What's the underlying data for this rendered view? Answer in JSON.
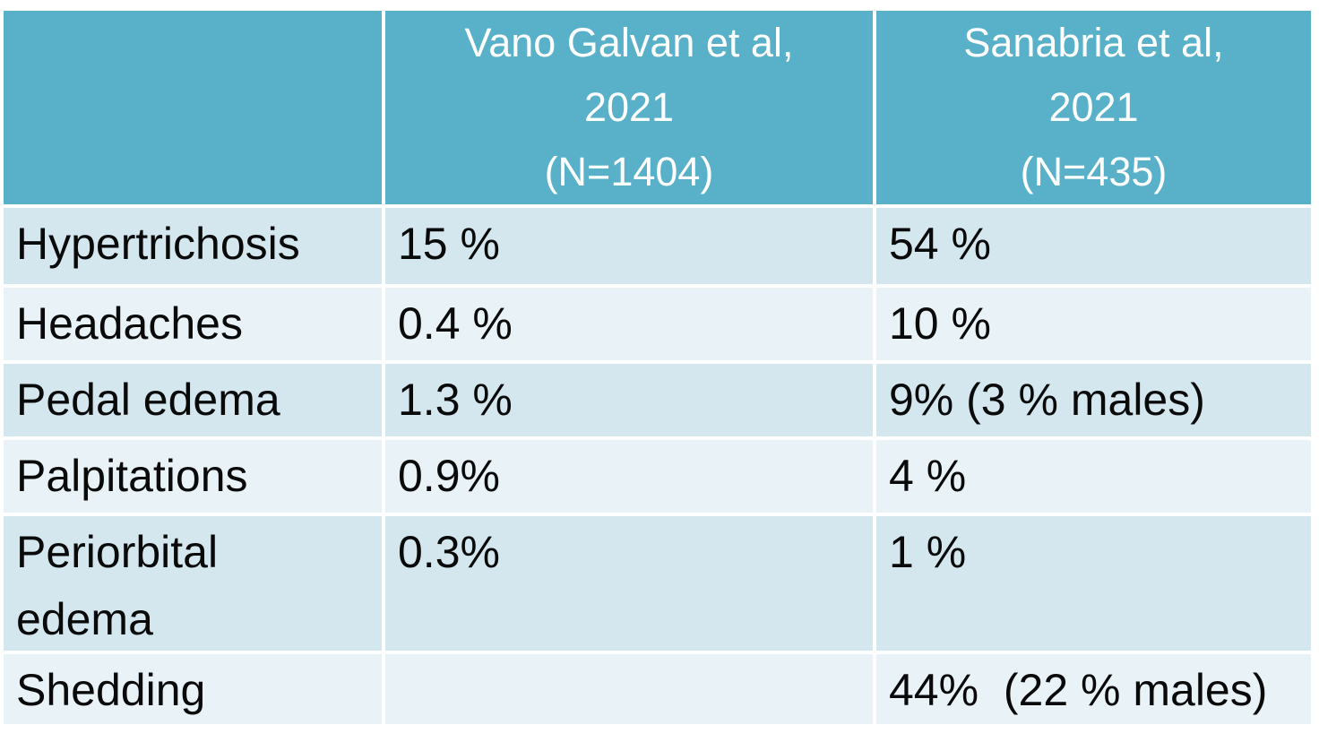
{
  "chart_data": {
    "type": "table",
    "columns": [
      "",
      "Vano Galvan et al, 2021 (N=1404)",
      "Sanabria et al, 2021 (N=435)"
    ],
    "rows": [
      [
        "Hypertrichosis",
        "15 %",
        "54 %"
      ],
      [
        "Headaches",
        "0.4 %",
        "10 %"
      ],
      [
        "Pedal edema",
        "1.3 %",
        "9% (3 % males)"
      ],
      [
        "Palpitations",
        "0.9%",
        "4 %"
      ],
      [
        "Periorbital edema",
        "0.3%",
        "1 %"
      ],
      [
        "Shedding",
        "",
        "44%  (22 % males)"
      ]
    ],
    "layout_hints": {
      "banded_rows": true,
      "header_position": "top",
      "grid": "white separators between cells"
    }
  },
  "table": {
    "header": {
      "col1": "",
      "col2": "Vano Galvan et al,\n2021\n(N=1404)",
      "col3": "Sanabria et al,\n2021\n(N=435)"
    },
    "rows": [
      {
        "label": "Hypertrichosis",
        "vano": "15 %",
        "sanabria": "54 %"
      },
      {
        "label": "Headaches",
        "vano": "0.4 %",
        "sanabria": "10 %"
      },
      {
        "label": "Pedal edema",
        "vano": "1.3 %",
        "sanabria": "9% (3 % males)"
      },
      {
        "label": "Palpitations",
        "vano": "0.9%",
        "sanabria": "4 %"
      },
      {
        "label": "Periorbital\nedema",
        "vano": "0.3%",
        "sanabria": "1 %"
      },
      {
        "label": "Shedding",
        "vano": "",
        "sanabria": "44%  (22 % males)"
      }
    ],
    "colors": {
      "header_bg": "#58B1C8",
      "row_band_dark": "#D4E7EF",
      "row_band_light": "#E9F2F7",
      "header_text": "#FFFFFF",
      "body_text": "#0A0A0A",
      "separator": "#FFFFFF"
    }
  }
}
